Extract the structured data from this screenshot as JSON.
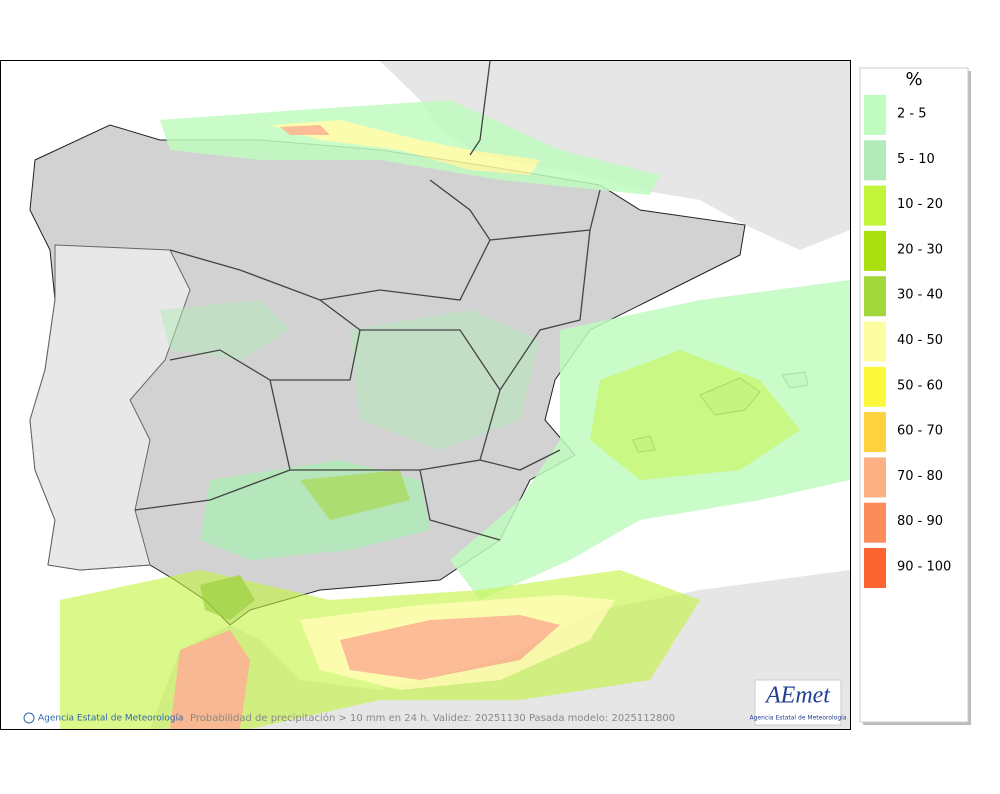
{
  "legend": {
    "title": "%",
    "items": [
      {
        "label": "2 - 5",
        "color": "#c0fcc0"
      },
      {
        "label": "5 - 10",
        "color": "#b2eab8"
      },
      {
        "label": "10 - 20",
        "color": "#c2f43a"
      },
      {
        "label": "20 - 30",
        "color": "#aae010"
      },
      {
        "label": "30 - 40",
        "color": "#a2d83c"
      },
      {
        "label": "40 - 50",
        "color": "#fcfca0"
      },
      {
        "label": "50 - 60",
        "color": "#fcf83c"
      },
      {
        "label": "60 - 70",
        "color": "#fcd23e"
      },
      {
        "label": "70 - 80",
        "color": "#fcb084"
      },
      {
        "label": "80 - 90",
        "color": "#fc8c5a"
      },
      {
        "label": "90 - 100",
        "color": "#fc6432"
      }
    ]
  },
  "footer": {
    "agency": "Agencia Estatal de Meteorología",
    "caption": "Probabilidad de precipitación > 10 mm en 24 h. Validez: 20251130 Pasada modelo: 2025112800"
  },
  "logo": {
    "name": "AEmet",
    "subtitle": "Agencia Estatal de Meteorología"
  }
}
